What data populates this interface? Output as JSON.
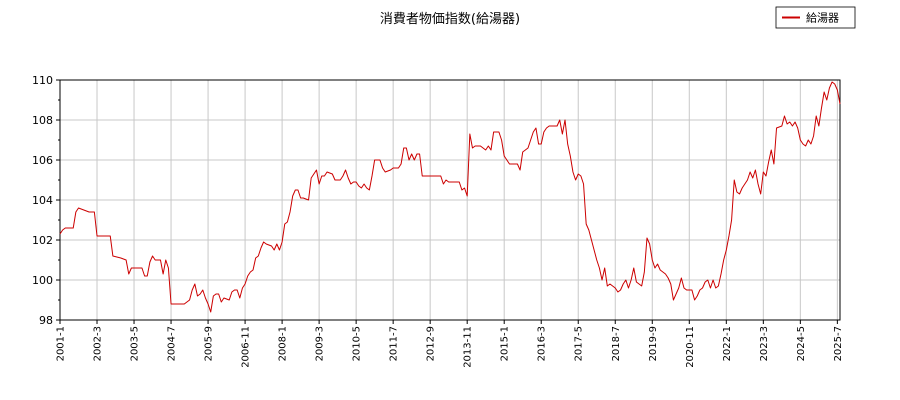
{
  "chart_data": {
    "type": "line",
    "title": "消費者物価指数(給湯器)",
    "xlabel": "",
    "ylabel": "",
    "ylim": [
      98,
      110
    ],
    "yticks": [
      98,
      100,
      102,
      104,
      106,
      108,
      110
    ],
    "xticks": [
      "2001-1",
      "2002-3",
      "2003-5",
      "2004-7",
      "2005-9",
      "2006-11",
      "2008-1",
      "2009-3",
      "2010-5",
      "2011-7",
      "2012-9",
      "2013-11",
      "2015-1",
      "2016-3",
      "2017-5",
      "2018-7",
      "2019-9",
      "2020-11",
      "2022-1",
      "2023-3",
      "2024-5",
      "2025-7"
    ],
    "grid": true,
    "legend_position": "top-right",
    "series": [
      {
        "name": "給湯器",
        "color": "#cc0000",
        "points": [
          [
            "2001-01",
            102.3
          ],
          [
            "2001-02",
            102.5
          ],
          [
            "2001-03",
            102.6
          ],
          [
            "2001-06",
            102.6
          ],
          [
            "2001-07",
            103.4
          ],
          [
            "2001-08",
            103.6
          ],
          [
            "2001-10",
            103.5
          ],
          [
            "2001-12",
            103.4
          ],
          [
            "2002-02",
            103.4
          ],
          [
            "2002-03",
            102.2
          ],
          [
            "2002-06",
            102.2
          ],
          [
            "2002-08",
            102.2
          ],
          [
            "2002-09",
            101.2
          ],
          [
            "2002-12",
            101.1
          ],
          [
            "2003-02",
            101.0
          ],
          [
            "2003-03",
            100.3
          ],
          [
            "2003-04",
            100.6
          ],
          [
            "2003-08",
            100.6
          ],
          [
            "2003-09",
            100.2
          ],
          [
            "2003-10",
            100.2
          ],
          [
            "2003-11",
            100.9
          ],
          [
            "2003-12",
            101.2
          ],
          [
            "2004-01",
            101.0
          ],
          [
            "2004-03",
            101.0
          ],
          [
            "2004-04",
            100.3
          ],
          [
            "2004-05",
            101.0
          ],
          [
            "2004-06",
            100.6
          ],
          [
            "2004-07",
            98.8
          ],
          [
            "2004-09",
            98.8
          ],
          [
            "2004-12",
            98.8
          ],
          [
            "2005-02",
            99.0
          ],
          [
            "2005-03",
            99.5
          ],
          [
            "2005-04",
            99.8
          ],
          [
            "2005-05",
            99.2
          ],
          [
            "2005-06",
            99.3
          ],
          [
            "2005-07",
            99.5
          ],
          [
            "2005-08",
            99.1
          ],
          [
            "2005-09",
            98.8
          ],
          [
            "2005-10",
            98.4
          ],
          [
            "2005-11",
            99.2
          ],
          [
            "2005-12",
            99.3
          ],
          [
            "2006-01",
            99.3
          ],
          [
            "2006-02",
            98.9
          ],
          [
            "2006-03",
            99.1
          ],
          [
            "2006-05",
            99.0
          ],
          [
            "2006-06",
            99.4
          ],
          [
            "2006-07",
            99.5
          ],
          [
            "2006-08",
            99.5
          ],
          [
            "2006-09",
            99.1
          ],
          [
            "2006-10",
            99.6
          ],
          [
            "2006-11",
            99.8
          ],
          [
            "2006-12",
            100.2
          ],
          [
            "2007-01",
            100.4
          ],
          [
            "2007-02",
            100.5
          ],
          [
            "2007-03",
            101.1
          ],
          [
            "2007-04",
            101.2
          ],
          [
            "2007-05",
            101.6
          ],
          [
            "2007-06",
            101.9
          ],
          [
            "2007-07",
            101.8
          ],
          [
            "2007-09",
            101.7
          ],
          [
            "2007-10",
            101.5
          ],
          [
            "2007-11",
            101.8
          ],
          [
            "2007-12",
            101.5
          ],
          [
            "2008-01",
            101.9
          ],
          [
            "2008-02",
            102.8
          ],
          [
            "2008-03",
            102.9
          ],
          [
            "2008-04",
            103.4
          ],
          [
            "2008-05",
            104.2
          ],
          [
            "2008-06",
            104.5
          ],
          [
            "2008-07",
            104.5
          ],
          [
            "2008-08",
            104.1
          ],
          [
            "2008-09",
            104.1
          ],
          [
            "2008-11",
            104.0
          ],
          [
            "2008-12",
            105.1
          ],
          [
            "2009-01",
            105.3
          ],
          [
            "2009-02",
            105.5
          ],
          [
            "2009-03",
            104.8
          ],
          [
            "2009-04",
            105.2
          ],
          [
            "2009-05",
            105.2
          ],
          [
            "2009-06",
            105.4
          ],
          [
            "2009-08",
            105.3
          ],
          [
            "2009-09",
            105.0
          ],
          [
            "2009-11",
            105.0
          ],
          [
            "2009-12",
            105.2
          ],
          [
            "2010-01",
            105.5
          ],
          [
            "2010-02",
            105.1
          ],
          [
            "2010-03",
            104.8
          ],
          [
            "2010-04",
            104.9
          ],
          [
            "2010-05",
            104.9
          ],
          [
            "2010-06",
            104.7
          ],
          [
            "2010-07",
            104.6
          ],
          [
            "2010-08",
            104.8
          ],
          [
            "2010-09",
            104.6
          ],
          [
            "2010-10",
            104.5
          ],
          [
            "2010-11",
            105.2
          ],
          [
            "2010-12",
            106.0
          ],
          [
            "2011-02",
            106.0
          ],
          [
            "2011-03",
            105.6
          ],
          [
            "2011-04",
            105.4
          ],
          [
            "2011-06",
            105.5
          ],
          [
            "2011-07",
            105.6
          ],
          [
            "2011-09",
            105.6
          ],
          [
            "2011-10",
            105.8
          ],
          [
            "2011-11",
            106.6
          ],
          [
            "2011-12",
            106.6
          ],
          [
            "2012-01",
            106.0
          ],
          [
            "2012-02",
            106.3
          ],
          [
            "2012-03",
            106.0
          ],
          [
            "2012-04",
            106.3
          ],
          [
            "2012-05",
            106.3
          ],
          [
            "2012-06",
            105.2
          ],
          [
            "2012-12",
            105.2
          ],
          [
            "2013-01",
            105.2
          ],
          [
            "2013-02",
            104.8
          ],
          [
            "2013-03",
            105.0
          ],
          [
            "2013-04",
            104.9
          ],
          [
            "2013-06",
            104.9
          ],
          [
            "2013-08",
            104.9
          ],
          [
            "2013-09",
            104.5
          ],
          [
            "2013-10",
            104.6
          ],
          [
            "2013-11",
            104.2
          ],
          [
            "2013-12",
            107.3
          ],
          [
            "2014-01",
            106.6
          ],
          [
            "2014-02",
            106.7
          ],
          [
            "2014-04",
            106.7
          ],
          [
            "2014-05",
            106.6
          ],
          [
            "2014-06",
            106.5
          ],
          [
            "2014-07",
            106.7
          ],
          [
            "2014-08",
            106.5
          ],
          [
            "2014-09",
            107.4
          ],
          [
            "2014-11",
            107.4
          ],
          [
            "2014-12",
            107.0
          ],
          [
            "2015-01",
            106.2
          ],
          [
            "2015-02",
            106.0
          ],
          [
            "2015-03",
            105.8
          ],
          [
            "2015-06",
            105.8
          ],
          [
            "2015-07",
            105.5
          ],
          [
            "2015-08",
            106.4
          ],
          [
            "2015-10",
            106.6
          ],
          [
            "2015-11",
            107.0
          ],
          [
            "2015-12",
            107.4
          ],
          [
            "2016-01",
            107.6
          ],
          [
            "2016-02",
            106.8
          ],
          [
            "2016-03",
            106.8
          ],
          [
            "2016-04",
            107.4
          ],
          [
            "2016-05",
            107.6
          ],
          [
            "2016-06",
            107.7
          ],
          [
            "2016-09",
            107.7
          ],
          [
            "2016-10",
            108.0
          ],
          [
            "2016-11",
            107.3
          ],
          [
            "2016-12",
            108.0
          ],
          [
            "2017-01",
            106.8
          ],
          [
            "2017-02",
            106.2
          ],
          [
            "2017-03",
            105.4
          ],
          [
            "2017-04",
            105.0
          ],
          [
            "2017-05",
            105.3
          ],
          [
            "2017-06",
            105.2
          ],
          [
            "2017-07",
            104.8
          ],
          [
            "2017-08",
            102.8
          ],
          [
            "2017-09",
            102.5
          ],
          [
            "2017-10",
            102.0
          ],
          [
            "2017-11",
            101.5
          ],
          [
            "2017-12",
            101.0
          ],
          [
            "2018-01",
            100.6
          ],
          [
            "2018-02",
            100.0
          ],
          [
            "2018-03",
            100.6
          ],
          [
            "2018-04",
            99.7
          ],
          [
            "2018-05",
            99.8
          ],
          [
            "2018-07",
            99.6
          ],
          [
            "2018-08",
            99.4
          ],
          [
            "2018-09",
            99.5
          ],
          [
            "2018-10",
            99.8
          ],
          [
            "2018-11",
            100.0
          ],
          [
            "2018-12",
            99.6
          ],
          [
            "2019-01",
            100.0
          ],
          [
            "2019-02",
            100.6
          ],
          [
            "2019-03",
            99.9
          ],
          [
            "2019-04",
            99.8
          ],
          [
            "2019-05",
            99.7
          ],
          [
            "2019-06",
            100.4
          ],
          [
            "2019-07",
            102.1
          ],
          [
            "2019-08",
            101.8
          ],
          [
            "2019-09",
            101.0
          ],
          [
            "2019-10",
            100.6
          ],
          [
            "2019-11",
            100.8
          ],
          [
            "2019-12",
            100.5
          ],
          [
            "2020-01",
            100.4
          ],
          [
            "2020-02",
            100.3
          ],
          [
            "2020-03",
            100.1
          ],
          [
            "2020-04",
            99.8
          ],
          [
            "2020-05",
            99.0
          ],
          [
            "2020-06",
            99.3
          ],
          [
            "2020-07",
            99.6
          ],
          [
            "2020-08",
            100.1
          ],
          [
            "2020-09",
            99.6
          ],
          [
            "2020-10",
            99.5
          ],
          [
            "2020-12",
            99.5
          ],
          [
            "2021-01",
            99.0
          ],
          [
            "2021-02",
            99.2
          ],
          [
            "2021-03",
            99.5
          ],
          [
            "2021-04",
            99.6
          ],
          [
            "2021-05",
            99.9
          ],
          [
            "2021-06",
            100.0
          ],
          [
            "2021-07",
            99.6
          ],
          [
            "2021-08",
            100.0
          ],
          [
            "2021-09",
            99.6
          ],
          [
            "2021-10",
            99.7
          ],
          [
            "2021-11",
            100.3
          ],
          [
            "2021-12",
            101.0
          ],
          [
            "2022-01",
            101.5
          ],
          [
            "2022-02",
            102.2
          ],
          [
            "2022-03",
            103.0
          ],
          [
            "2022-04",
            105.0
          ],
          [
            "2022-05",
            104.4
          ],
          [
            "2022-06",
            104.3
          ],
          [
            "2022-07",
            104.6
          ],
          [
            "2022-08",
            104.8
          ],
          [
            "2022-09",
            105.0
          ],
          [
            "2022-10",
            105.4
          ],
          [
            "2022-11",
            105.1
          ],
          [
            "2022-12",
            105.5
          ],
          [
            "2023-01",
            104.8
          ],
          [
            "2023-02",
            104.3
          ],
          [
            "2023-03",
            105.4
          ],
          [
            "2023-04",
            105.2
          ],
          [
            "2023-05",
            105.9
          ],
          [
            "2023-06",
            106.5
          ],
          [
            "2023-07",
            105.8
          ],
          [
            "2023-08",
            107.6
          ],
          [
            "2023-10",
            107.7
          ],
          [
            "2023-11",
            108.2
          ],
          [
            "2023-12",
            107.8
          ],
          [
            "2024-01",
            107.9
          ],
          [
            "2024-02",
            107.7
          ],
          [
            "2024-03",
            107.9
          ],
          [
            "2024-04",
            107.6
          ],
          [
            "2024-05",
            107.0
          ],
          [
            "2024-06",
            106.8
          ],
          [
            "2024-07",
            106.7
          ],
          [
            "2024-08",
            107.0
          ],
          [
            "2024-09",
            106.8
          ],
          [
            "2024-10",
            107.2
          ],
          [
            "2024-11",
            108.2
          ],
          [
            "2024-12",
            107.7
          ],
          [
            "2025-01",
            108.6
          ],
          [
            "2025-02",
            109.4
          ],
          [
            "2025-03",
            109.0
          ],
          [
            "2025-04",
            109.6
          ],
          [
            "2025-05",
            109.9
          ],
          [
            "2025-06",
            109.8
          ],
          [
            "2025-07",
            109.5
          ],
          [
            "2025-08",
            108.8
          ]
        ]
      }
    ]
  }
}
